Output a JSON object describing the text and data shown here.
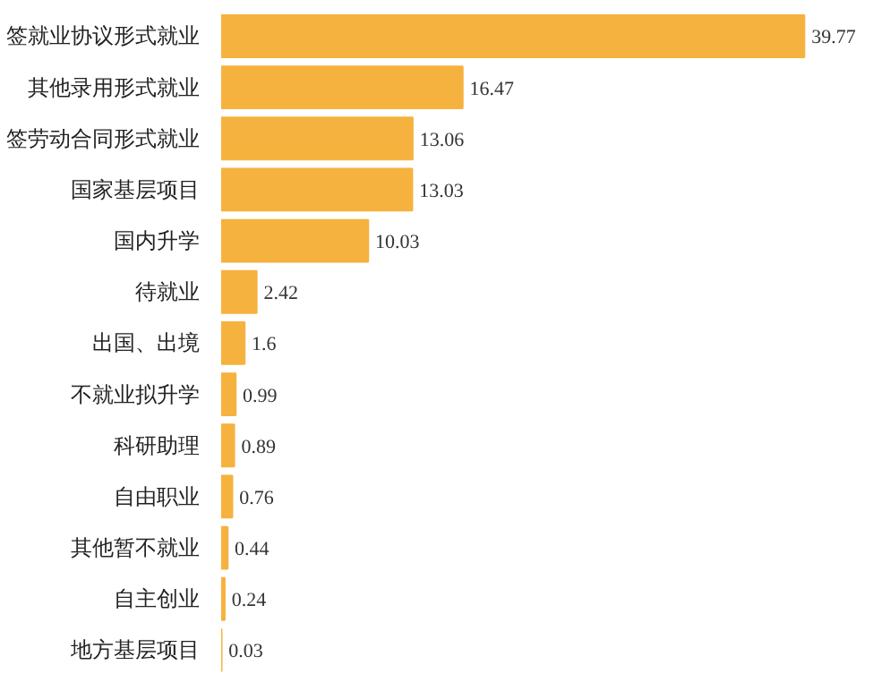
{
  "chart_data": {
    "type": "bar",
    "orientation": "horizontal",
    "categories": [
      "签就业协议形式就业",
      "其他录用形式就业",
      "签劳动合同形式就业",
      "国家基层项目",
      "国内升学",
      "待就业",
      "出国、出境",
      "不就业拟升学",
      "科研助理",
      "自由职业",
      "其他暂不就业",
      "自主创业",
      "地方基层项目"
    ],
    "values": [
      39.77,
      16.47,
      13.06,
      13.03,
      10.03,
      2.42,
      1.6,
      0.99,
      0.89,
      0.76,
      0.44,
      0.24,
      0.03
    ],
    "color": "#f6b23e",
    "data_labels": true,
    "grid": false
  }
}
